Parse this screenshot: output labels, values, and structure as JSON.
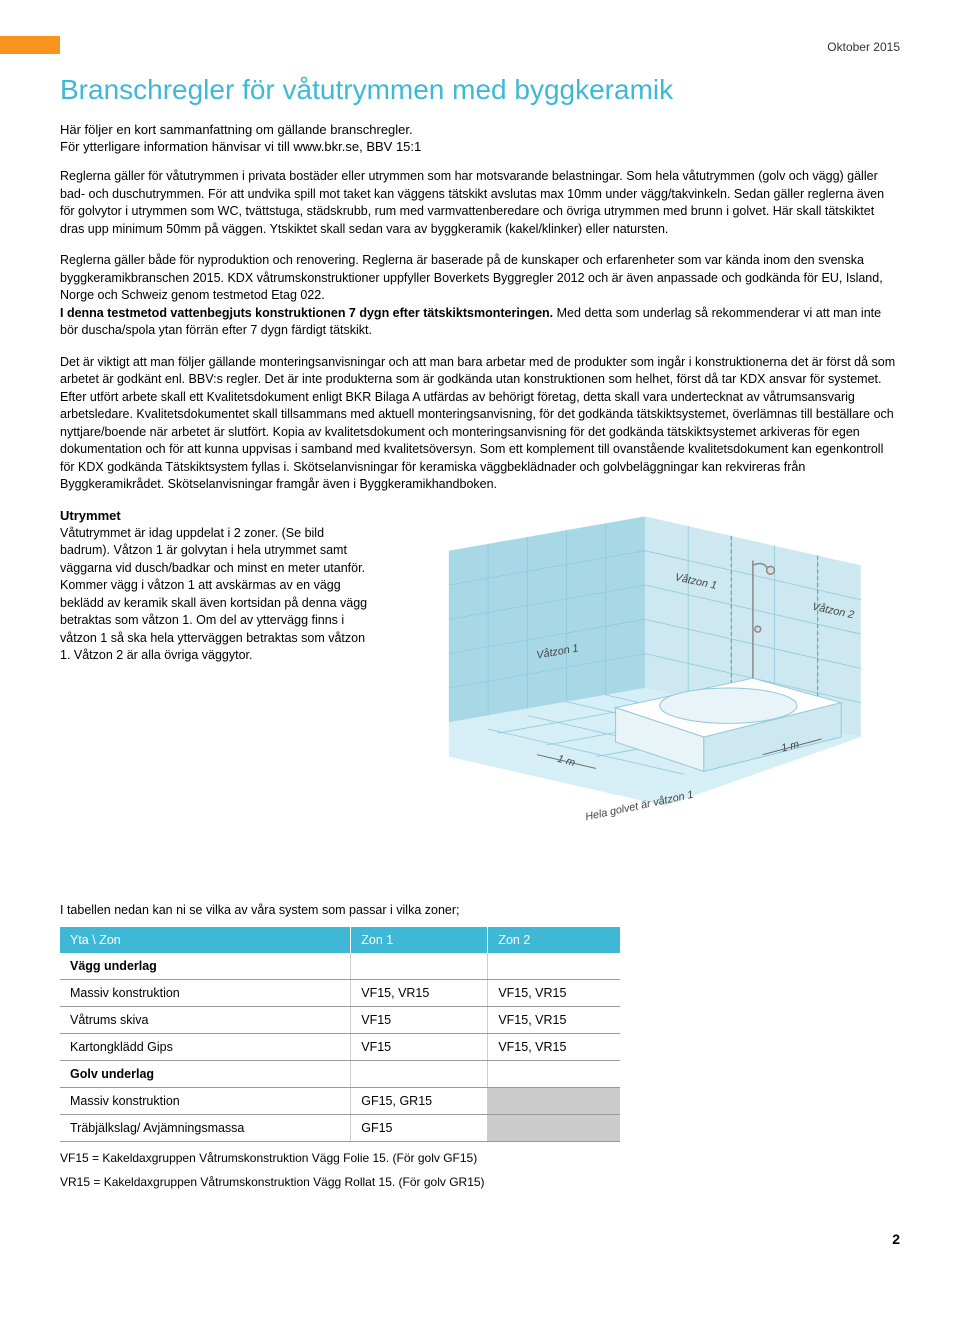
{
  "date": "Oktober 2015",
  "title": "Branschregler för våtutrymmen med byggkeramik",
  "subtitle1": "Här följer en kort sammanfattning om gällande branschregler.",
  "subtitle2": "För ytterligare information hänvisar vi till www.bkr.se, BBV 15:1",
  "para1": "Reglerna gäller för våtutrymmen i privata bostäder eller utrymmen som har motsvarande belastningar. Som hela våtutrymmen (golv och vägg) gäller bad- och duschutrymmen. För att undvika spill mot taket kan väggens tätskikt avslutas max 10mm under vägg/takvinkeln. Sedan gäller reglerna även för golvytor i utrymmen som WC, tvättstuga, städskrubb, rum med varmvattenberedare och övriga utrymmen med brunn i golvet. Här skall tätskiktet dras upp minimum 50mm på väggen. Ytskiktet skall sedan vara av byggkeramik (kakel/klinker) eller natursten.",
  "para2": "Reglerna gäller både för nyproduktion och renovering. Reglerna är baserade på de kunskaper och erfarenheter som var kända inom den svenska byggkeramikbranschen 2015. KDX våtrumskonstruktioner uppfyller Boverkets Byggregler 2012 och är även anpassade och godkända för EU, Island, Norge och Schweiz genom testmetod Etag 022.",
  "para2b_bold": "I denna testmetod vattenbegjuts konstruktionen 7 dygn efter tätskiktsmonteringen.",
  "para2b_rest": " Med detta som underlag så rekommenderar vi att man inte bör duscha/spola ytan förrän efter 7 dygn färdigt tätskikt.",
  "para3": "Det är viktigt att man följer gällande monteringsanvisningar och att man bara arbetar med de produkter som ingår i konstruktionerna det är först då som arbetet är godkänt enl. BBV:s regler. Det är inte produkterna som är godkända utan konstruktionen som helhet, först då tar KDX ansvar för systemet. Efter utfört arbete skall ett Kvalitetsdokument enligt BKR Bilaga A utfärdas av behörigt företag, detta skall vara undertecknat av våtrumsansvarig arbetsledare. Kvalitetsdokumentet skall tillsammans med aktuell monteringsanvisning, för det godkända tätskiktsystemet, överlämnas till beställare och nyttjare/boende när arbetet är slutfört. Kopia av kvalitetsdokument och monteringsanvisning för det godkända tätskiktsystemet arkiveras för egen dokumentation och för att kunna uppvisas i samband med kvalitetsöversyn. Som ett komplement till ovanstående kvalitetsdokument kan egenkontroll för KDX godkända Tätskiktsystem fyllas i. Skötselanvisningar för keramiska väggbeklädnader och golvbeläggningar kan rekvireras från Byggkeramikrådet. Skötselanvisningar framgår även i Byggkeramikhandboken.",
  "section_head": "Utrymmet",
  "para4": "Våtutrymmet är idag uppdelat i 2 zoner. (Se bild badrum). Våtzon 1 är golvytan i hela utrymmet samt väggarna vid dusch/badkar och minst en meter utanför. Kommer vägg i våtzon 1 att avskärmas av en vägg beklädd av keramik skall även kortsidan på denna vägg betraktas som våtzon 1. Om del av yttervägg finns i våtzon 1 så ska hela ytterväggen betraktas som våtzon 1. Våtzon 2 är alla övriga väggytor.",
  "diagram_labels": {
    "vatzon1_a": "Våtzon 1",
    "vatzon1_b": "Våtzon 1",
    "vatzon2": "Våtzon 2",
    "dim1": "1 m",
    "dim2": "1 m",
    "floor": "Hela golvet är våtzon 1"
  },
  "table_intro": "I tabellen nedan kan ni se vilka av våra system som passar i vilka zoner;",
  "table": {
    "headers": [
      "Yta \\ Zon",
      "Zon 1",
      "Zon 2"
    ],
    "sections": [
      {
        "title": "Vägg underlag",
        "rows": [
          [
            "Massiv konstruktion",
            "VF15, VR15",
            "VF15, VR15"
          ],
          [
            "Våtrums skiva",
            "VF15",
            "VF15, VR15"
          ],
          [
            "Kartongklädd Gips",
            "VF15",
            "VF15, VR15"
          ]
        ]
      },
      {
        "title": "Golv underlag",
        "rows": [
          [
            "Massiv konstruktion",
            "GF15, GR15",
            "GREY"
          ],
          [
            "Träbjälkslag/ Avjämningsmassa",
            "GF15",
            "GREY"
          ]
        ]
      }
    ]
  },
  "footnote1": "VF15 = Kakeldaxgruppen Våtrumskonstruktion Vägg Folie 15. (För golv GF15)",
  "footnote2": "VR15 = Kakeldaxgruppen Våtrumskonstruktion Vägg Rollat 15. (För golv GR15)",
  "page_num": "2",
  "colors": {
    "accent": "#3fb8d6",
    "orange": "#f7941e",
    "wall_light": "#cde8f0",
    "wall_mid": "#a8d8e6",
    "floor": "#d6eef5",
    "tub": "#ffffff",
    "tub_shadow": "#b8dce8",
    "grid": "#8fc9db"
  }
}
